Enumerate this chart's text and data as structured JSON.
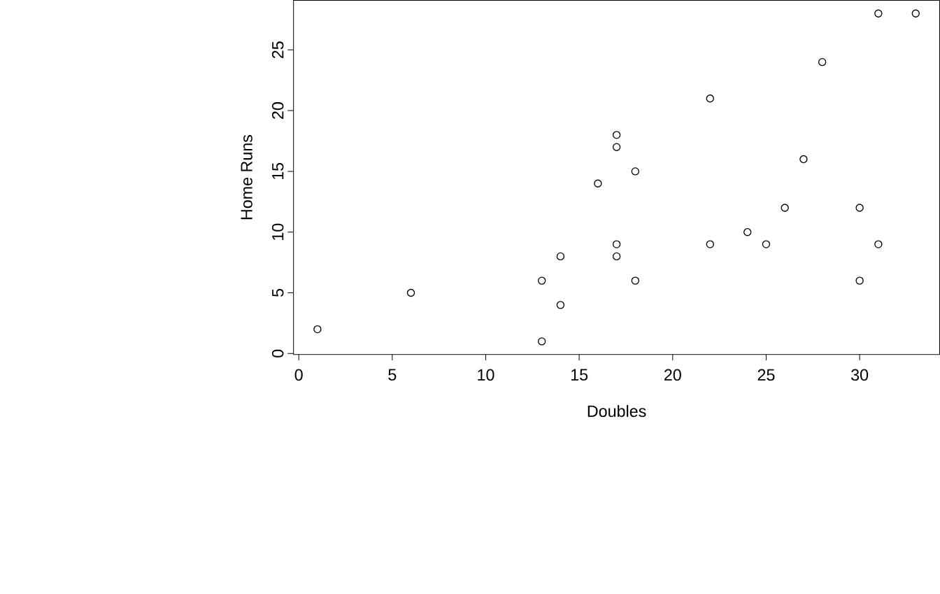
{
  "chart_data": {
    "type": "scatter",
    "xlabel": "Doubles",
    "ylabel": "Home Runs",
    "x": [
      1,
      6,
      13,
      13,
      14,
      14,
      16,
      17,
      17,
      17,
      17,
      18,
      18,
      22,
      22,
      24,
      25,
      26,
      27,
      28,
      30,
      30,
      31,
      31,
      33
    ],
    "values": [
      2,
      5,
      6,
      1,
      8,
      4,
      14,
      18,
      17,
      9,
      8,
      15,
      6,
      21,
      9,
      10,
      9,
      12,
      16,
      24,
      12,
      6,
      28,
      9,
      28
    ],
    "color": "#000000",
    "marker": "circle",
    "xlim": [
      -0.28,
      34.28
    ],
    "ylim": [
      -0.08,
      29.08
    ],
    "xticks": [
      0,
      5,
      10,
      15,
      20,
      25,
      30
    ],
    "yticks": [
      0,
      5,
      10,
      15,
      20,
      25
    ]
  }
}
